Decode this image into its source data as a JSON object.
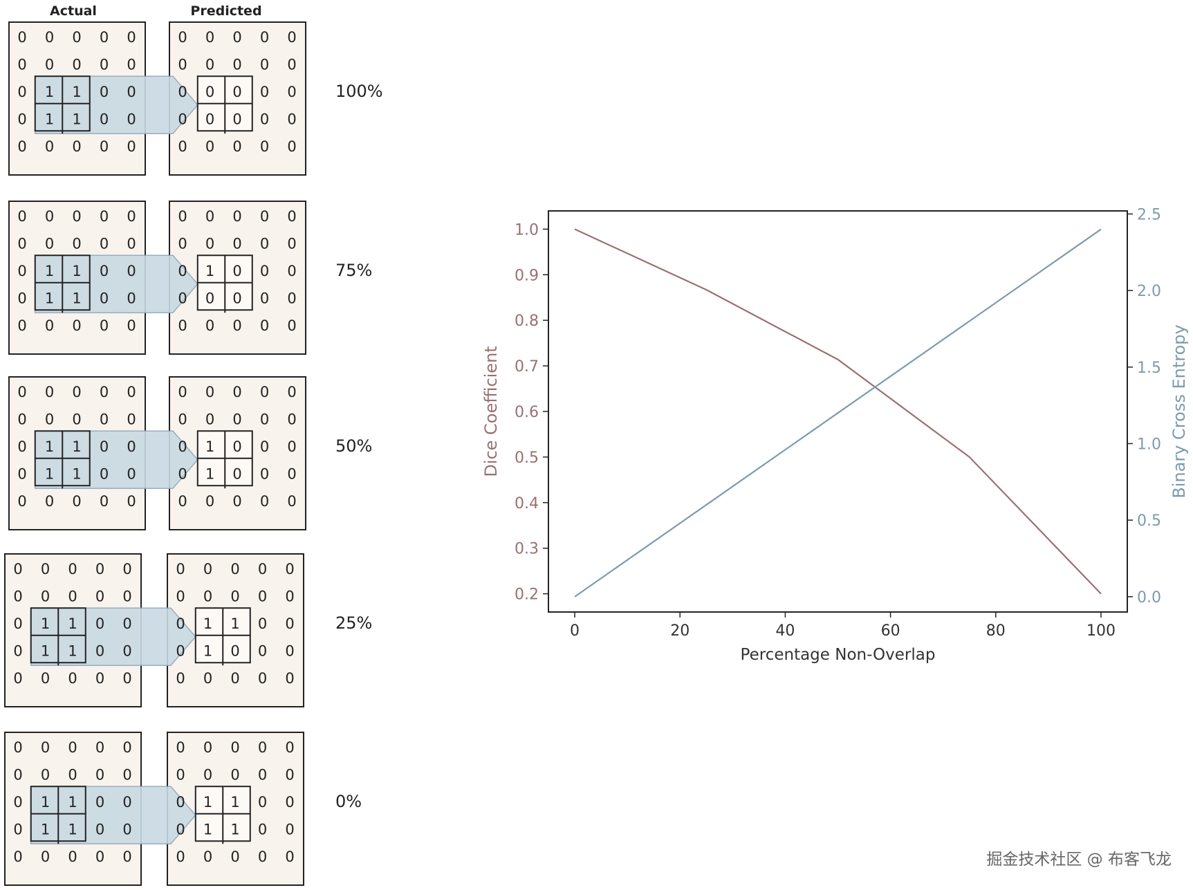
{
  "figure": {
    "header_actual": "Actual",
    "header_predicted": "Predicted",
    "rows": [
      {
        "label": "100%",
        "actual": [
          [
            0,
            0,
            0,
            0,
            0
          ],
          [
            0,
            0,
            0,
            0,
            0
          ],
          [
            0,
            1,
            1,
            0,
            0
          ],
          [
            0,
            1,
            1,
            0,
            0
          ],
          [
            0,
            0,
            0,
            0,
            0
          ]
        ],
        "predicted": [
          [
            0,
            0,
            0,
            0,
            0
          ],
          [
            0,
            0,
            0,
            0,
            0
          ],
          [
            0,
            0,
            0,
            0,
            0
          ],
          [
            0,
            0,
            0,
            0,
            0
          ],
          [
            0,
            0,
            0,
            0,
            0
          ]
        ]
      },
      {
        "label": "75%",
        "actual": [
          [
            0,
            0,
            0,
            0,
            0
          ],
          [
            0,
            0,
            0,
            0,
            0
          ],
          [
            0,
            1,
            1,
            0,
            0
          ],
          [
            0,
            1,
            1,
            0,
            0
          ],
          [
            0,
            0,
            0,
            0,
            0
          ]
        ],
        "predicted": [
          [
            0,
            0,
            0,
            0,
            0
          ],
          [
            0,
            0,
            0,
            0,
            0
          ],
          [
            0,
            1,
            0,
            0,
            0
          ],
          [
            0,
            0,
            0,
            0,
            0
          ],
          [
            0,
            0,
            0,
            0,
            0
          ]
        ]
      },
      {
        "label": "50%",
        "actual": [
          [
            0,
            0,
            0,
            0,
            0
          ],
          [
            0,
            0,
            0,
            0,
            0
          ],
          [
            0,
            1,
            1,
            0,
            0
          ],
          [
            0,
            1,
            1,
            0,
            0
          ],
          [
            0,
            0,
            0,
            0,
            0
          ]
        ],
        "predicted": [
          [
            0,
            0,
            0,
            0,
            0
          ],
          [
            0,
            0,
            0,
            0,
            0
          ],
          [
            0,
            1,
            0,
            0,
            0
          ],
          [
            0,
            1,
            0,
            0,
            0
          ],
          [
            0,
            0,
            0,
            0,
            0
          ]
        ]
      },
      {
        "label": "25%",
        "actual": [
          [
            0,
            0,
            0,
            0,
            0
          ],
          [
            0,
            0,
            0,
            0,
            0
          ],
          [
            0,
            1,
            1,
            0,
            0
          ],
          [
            0,
            1,
            1,
            0,
            0
          ],
          [
            0,
            0,
            0,
            0,
            0
          ]
        ],
        "predicted": [
          [
            0,
            0,
            0,
            0,
            0
          ],
          [
            0,
            0,
            0,
            0,
            0
          ],
          [
            0,
            1,
            1,
            0,
            0
          ],
          [
            0,
            1,
            0,
            0,
            0
          ],
          [
            0,
            0,
            0,
            0,
            0
          ]
        ]
      },
      {
        "label": "0%",
        "actual": [
          [
            0,
            0,
            0,
            0,
            0
          ],
          [
            0,
            0,
            0,
            0,
            0
          ],
          [
            0,
            1,
            1,
            0,
            0
          ],
          [
            0,
            1,
            1,
            0,
            0
          ],
          [
            0,
            0,
            0,
            0,
            0
          ]
        ],
        "predicted": [
          [
            0,
            0,
            0,
            0,
            0
          ],
          [
            0,
            0,
            0,
            0,
            0
          ],
          [
            0,
            1,
            1,
            0,
            0
          ],
          [
            0,
            1,
            1,
            0,
            0
          ],
          [
            0,
            0,
            0,
            0,
            0
          ]
        ]
      }
    ]
  },
  "chart_data": {
    "type": "line",
    "xlabel": "Percentage Non-Overlap",
    "ylabel_left": "Dice Coefficient",
    "ylabel_right": "Binary Cross Entropy",
    "xlim": [
      -5,
      105
    ],
    "ylim_left": [
      0.16,
      1.04
    ],
    "ylim_right": [
      -0.1,
      2.52
    ],
    "x_ticks": [
      0,
      20,
      40,
      60,
      80,
      100
    ],
    "y_ticks_left": [
      0.2,
      0.3,
      0.4,
      0.5,
      0.6,
      0.7,
      0.8,
      0.9,
      1.0
    ],
    "y_ticks_right": [
      0.0,
      0.5,
      1.0,
      1.5,
      2.0,
      2.5
    ],
    "x_tick_labels": [
      "0",
      "20",
      "40",
      "60",
      "80",
      "100"
    ],
    "y_tick_labels_left": [
      "0.2",
      "0.3",
      "0.4",
      "0.5",
      "0.6",
      "0.7",
      "0.8",
      "0.9",
      "1.0"
    ],
    "y_tick_labels_right": [
      "0.0",
      "0.5",
      "1.0",
      "1.5",
      "2.0",
      "2.5"
    ],
    "grid": false,
    "series": [
      {
        "axis": "left",
        "color": "#9a7070",
        "x": [
          0,
          25,
          50,
          75,
          100
        ],
        "y": [
          1.0,
          0.867,
          0.714,
          0.5,
          0.2
        ]
      },
      {
        "axis": "right",
        "color": "#7d9aae",
        "x": [
          0,
          25,
          50,
          75,
          100
        ],
        "y": [
          0.0,
          0.6,
          1.2,
          1.8,
          2.4
        ]
      }
    ]
  },
  "watermark": "掘金技术社区 @ 布客飞龙",
  "colors": {
    "panel_bg": "#f8f3ed",
    "panel_border": "#222222",
    "highlight_fill": "#c9d9e3",
    "highlight_stroke": "#8fa6b6",
    "dice_color": "#9a7070",
    "bce_color": "#7d9aae",
    "axis_color": "#222222"
  }
}
